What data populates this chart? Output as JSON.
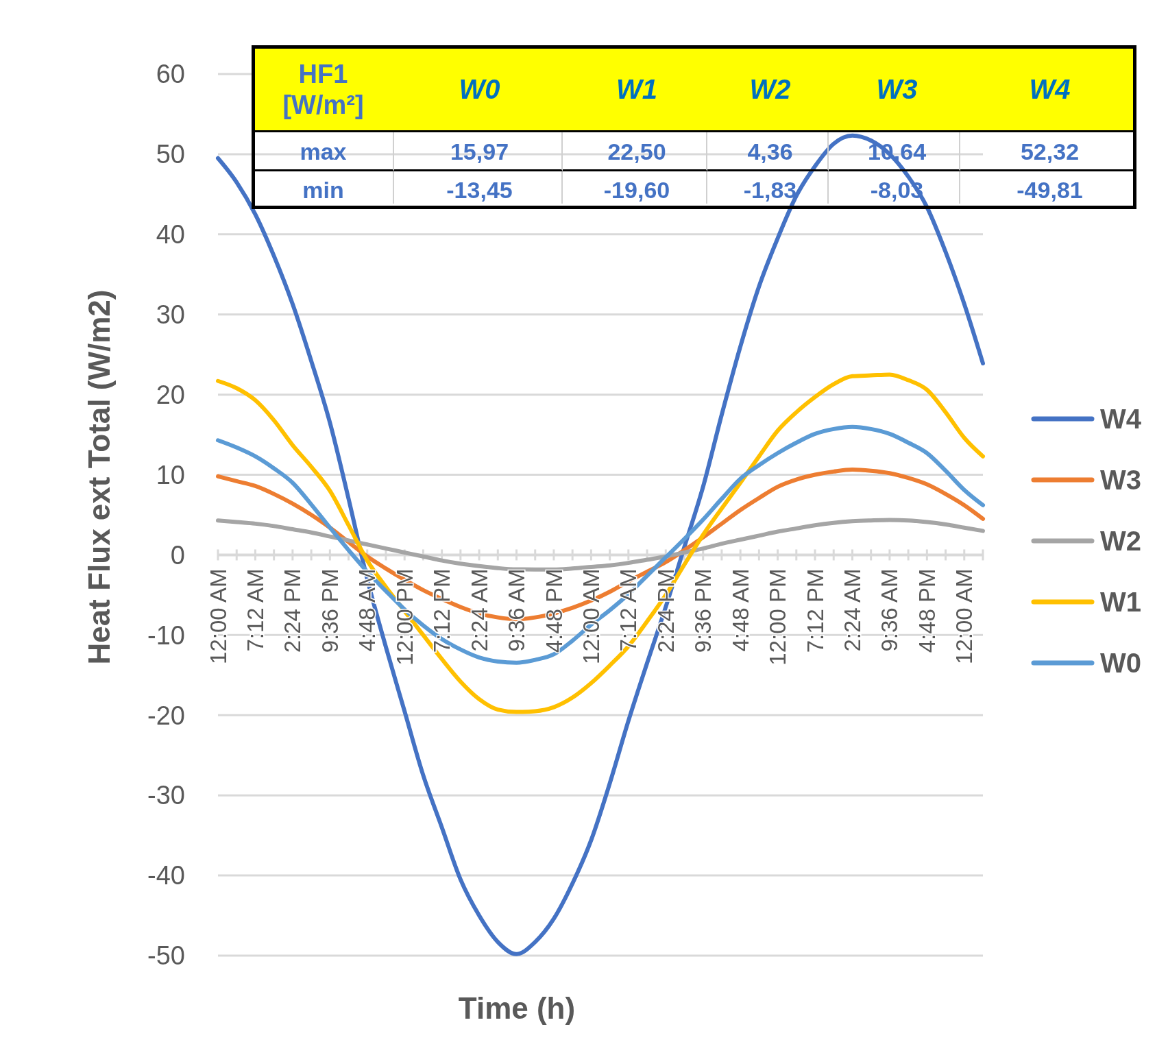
{
  "chart_data": {
    "type": "line",
    "xlabel": "Time (h)",
    "ylabel": "Heat Flux ext Total (W/m2)",
    "categories": [
      "12:00 AM",
      null,
      "7:12 AM",
      null,
      "2:24 PM",
      null,
      "9:36 PM",
      null,
      "4:48 AM",
      null,
      "12:00 PM",
      null,
      "7:12 PM",
      null,
      "2:24 AM",
      null,
      "9:36 AM",
      null,
      "4:48 PM",
      null,
      "12:00 AM",
      null,
      "7:12 AM",
      null,
      "2:24 PM",
      null,
      "9:36 PM",
      null,
      "4:48 AM",
      null,
      "12:00 PM",
      null,
      "7:12 PM",
      null,
      "2:24 AM",
      null,
      "9:36 AM",
      null,
      "4:48 PM",
      null,
      "12:00 AM",
      null
    ],
    "series": [
      {
        "name": "W4",
        "color": "#4472c4",
        "values": [
          49.5,
          46.5,
          42.5,
          37.3,
          31.3,
          24.2,
          16.5,
          7,
          -3,
          -11.5,
          -19.5,
          -27.5,
          -34,
          -40.5,
          -45,
          -48.3,
          -49.81,
          -48.3,
          -45.4,
          -41,
          -35.6,
          -28.5,
          -20.7,
          -13.5,
          -6.5,
          1,
          8.5,
          17.5,
          26,
          33.5,
          39.5,
          44.8,
          48.5,
          51.3,
          52.32,
          51.7,
          50,
          47.2,
          43.4,
          37.8,
          31.3,
          23.9
        ]
      },
      {
        "name": "W3",
        "color": "#ed7d31",
        "values": [
          9.8,
          9.2,
          8.6,
          7.6,
          6.4,
          5,
          3.4,
          1.6,
          -0.2,
          -1.7,
          -3.1,
          -4.4,
          -5.5,
          -6.5,
          -7.3,
          -7.8,
          -8.03,
          -7.8,
          -7.3,
          -6.6,
          -5.7,
          -4.6,
          -3.3,
          -2.1,
          -0.9,
          0.6,
          2.2,
          3.9,
          5.6,
          7.1,
          8.5,
          9.4,
          10,
          10.4,
          10.64,
          10.5,
          10.2,
          9.6,
          8.8,
          7.6,
          6.2,
          4.5
        ]
      },
      {
        "name": "W2",
        "color": "#a5a5a5",
        "values": [
          4.3,
          4.1,
          3.9,
          3.6,
          3.2,
          2.8,
          2.3,
          1.8,
          1.3,
          0.8,
          0.3,
          -0.2,
          -0.7,
          -1.1,
          -1.4,
          -1.65,
          -1.8,
          -1.82,
          -1.83,
          -1.7,
          -1.5,
          -1.3,
          -1,
          -0.6,
          -0.2,
          0.3,
          0.8,
          1.4,
          1.9,
          2.4,
          2.9,
          3.3,
          3.7,
          4,
          4.2,
          4.3,
          4.36,
          4.3,
          4.1,
          3.8,
          3.4,
          3
        ]
      },
      {
        "name": "W1",
        "color": "#ffc000",
        "values": [
          21.7,
          20.8,
          19.3,
          16.8,
          13.7,
          11,
          8,
          3.7,
          -0.7,
          -4,
          -7,
          -10,
          -13,
          -15.8,
          -18,
          -19.3,
          -19.6,
          -19.5,
          -19,
          -17.8,
          -16,
          -13.8,
          -11.4,
          -8.3,
          -5,
          -1.2,
          2.5,
          5.8,
          9,
          12.3,
          15.5,
          17.8,
          19.7,
          21.3,
          22.3,
          22.4,
          22.5,
          21.8,
          20.6,
          17.8,
          14.6,
          12.3
        ]
      },
      {
        "name": "W0",
        "color": "#5b9bd5",
        "values": [
          14.3,
          13.4,
          12.3,
          10.8,
          9,
          6.3,
          3.4,
          0.6,
          -2.1,
          -4.5,
          -6.8,
          -8.8,
          -10.5,
          -11.8,
          -12.8,
          -13.3,
          -13.45,
          -13.1,
          -12.4,
          -10.7,
          -8.7,
          -6.9,
          -4.9,
          -2.6,
          -0.3,
          2,
          4.4,
          7,
          9.5,
          11.2,
          12.7,
          14,
          15.1,
          15.7,
          15.97,
          15.7,
          15.1,
          14,
          12.7,
          10.5,
          8.1,
          6.2
        ]
      }
    ],
    "ylim": [
      -50,
      60
    ],
    "yticks": [
      -50,
      -40,
      -30,
      -20,
      -10,
      0,
      10,
      20,
      30,
      40,
      50,
      60
    ],
    "grid": "y",
    "legend": "right",
    "annotations": [
      "HF1 [W/m²]",
      "W0",
      "W1",
      "W2",
      "W3",
      "W4",
      "max",
      "15,97",
      "22,50",
      "4,36",
      "10,64",
      "52,32",
      "min",
      "-13,45",
      "-19,60",
      "-1,83",
      "-8,03",
      "-49,81"
    ]
  }
}
